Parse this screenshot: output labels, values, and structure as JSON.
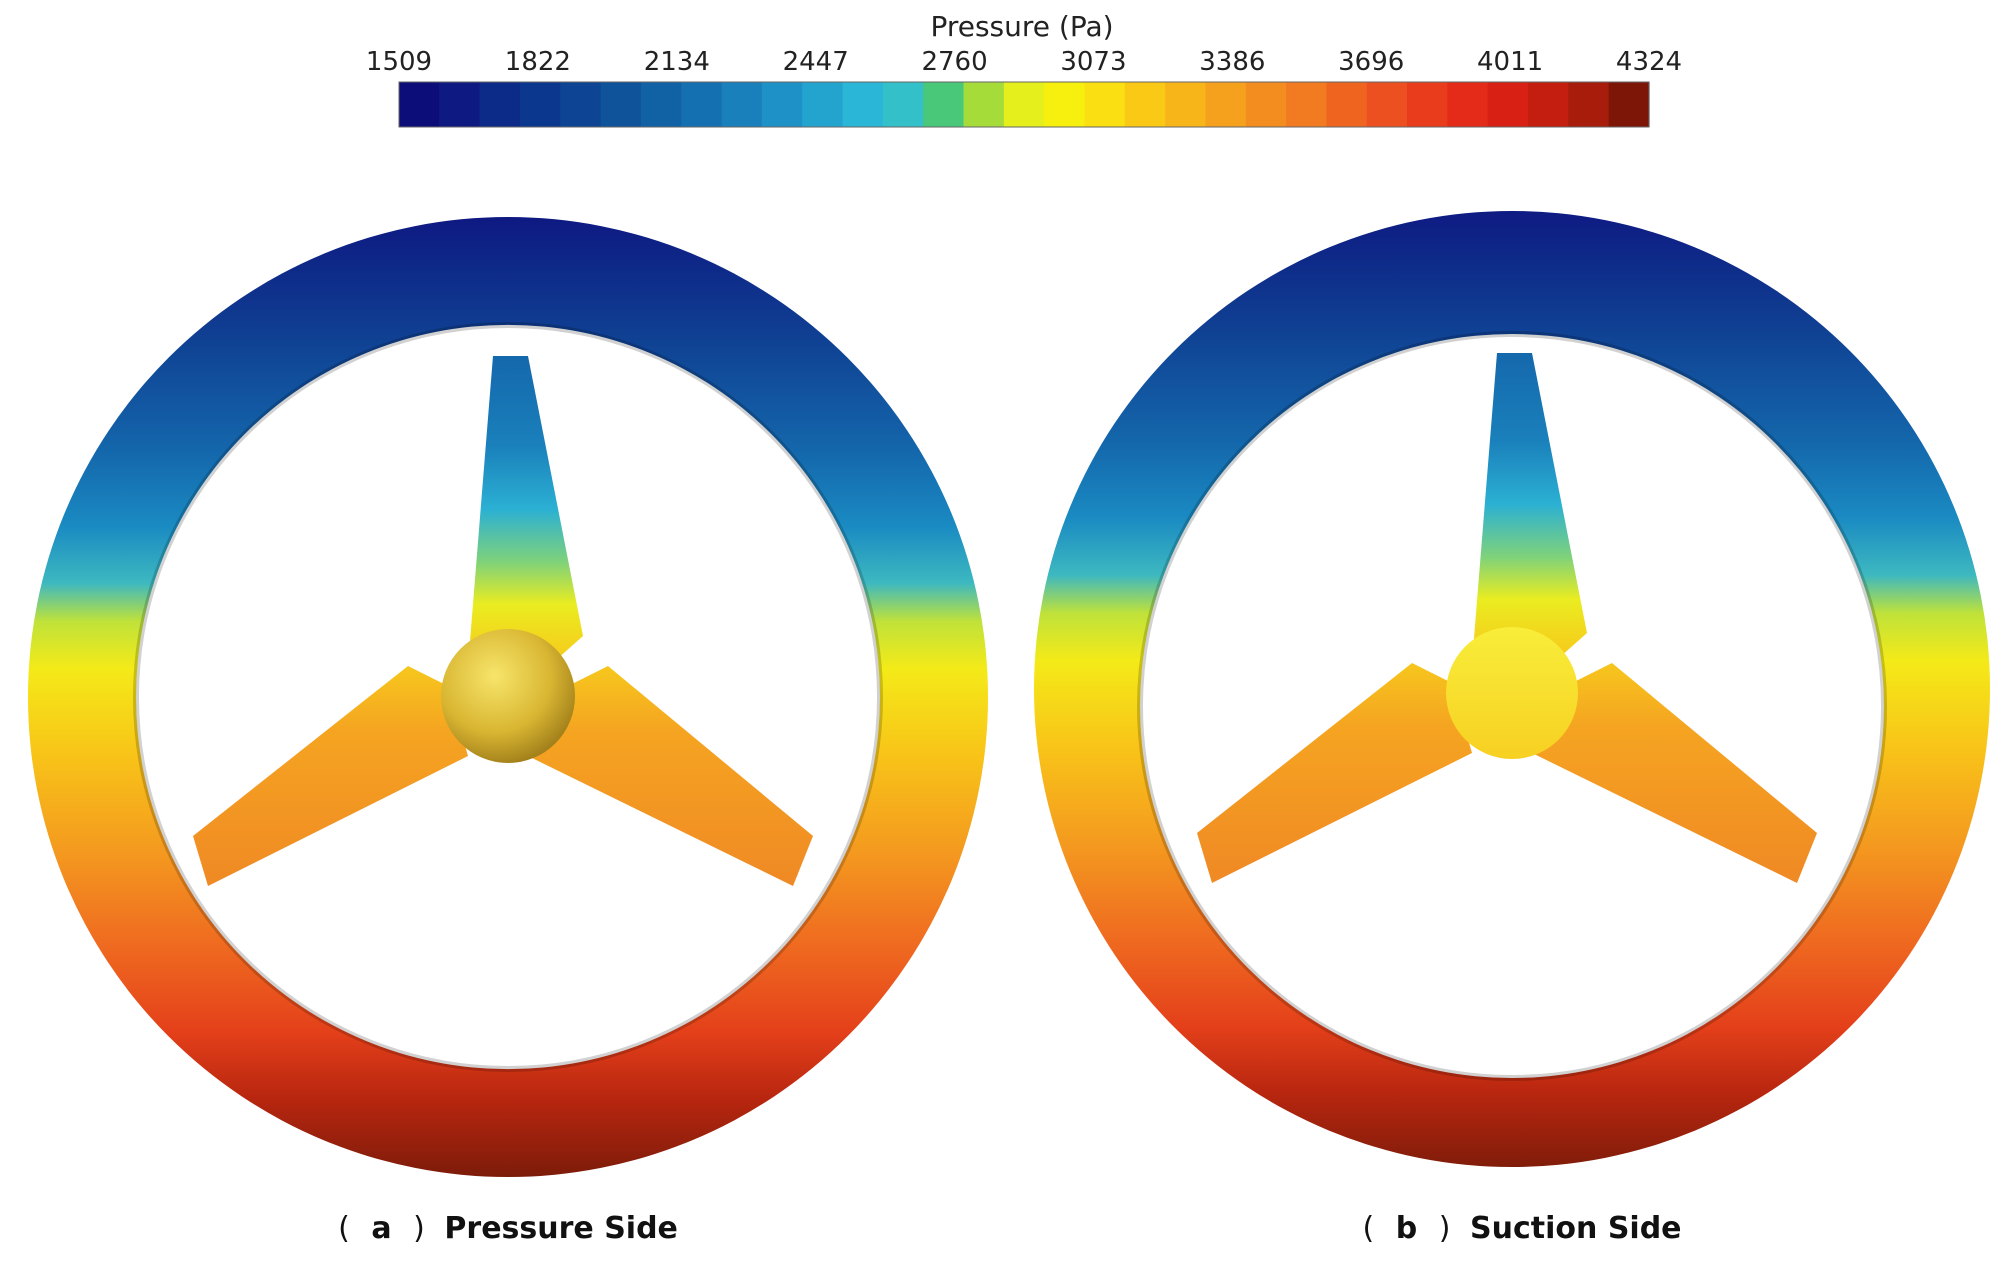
{
  "colorbar": {
    "title": "Pressure (Pa)",
    "ticks": [
      "1509",
      "1822",
      "2134",
      "2447",
      "2760",
      "3073",
      "3386",
      "3696",
      "4011",
      "4324"
    ],
    "range": [
      1509,
      4324
    ],
    "levels": 31,
    "colors": [
      "#0d0d7a",
      "#0e1a82",
      "#0c2a88",
      "#0c378e",
      "#0d4594",
      "#0f539b",
      "#1161a5",
      "#1470b0",
      "#1a80bb",
      "#1e92c6",
      "#22a4cf",
      "#2ab6d6",
      "#33c0c8",
      "#48c878",
      "#a5dc3a",
      "#e4ef1c",
      "#f7f00e",
      "#fadf12",
      "#f9c916",
      "#f8b51a",
      "#f6a11e",
      "#f48d20",
      "#f27a20",
      "#ef6520",
      "#ec5020",
      "#e83c1c",
      "#e42a18",
      "#d82014",
      "#c41e10",
      "#a81c0c",
      "#7e1608"
    ]
  },
  "panels": [
    {
      "caption_letter": "a",
      "caption_text": "Pressure Side"
    },
    {
      "caption_letter": "b",
      "caption_text": "Suction Side"
    }
  ],
  "caption_open": "(",
  "caption_close": ")"
}
